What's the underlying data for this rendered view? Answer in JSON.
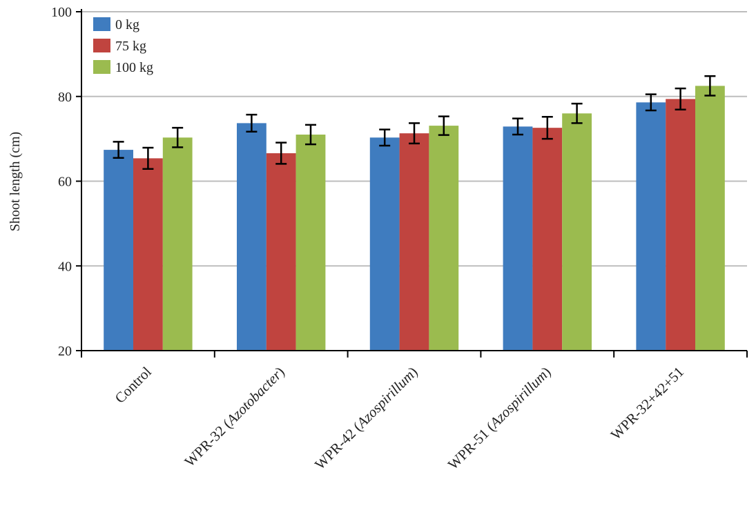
{
  "chart_data": {
    "type": "bar",
    "title": "",
    "xlabel": "",
    "ylabel": "Shoot length (cm)",
    "ylim": [
      20,
      100
    ],
    "yticks": [
      20,
      40,
      60,
      80,
      100
    ],
    "grid": true,
    "legend_position": "top-left",
    "categories": [
      "Control",
      "WPR-32 (Azotobacter)",
      "WPR-42 (Azospirillum)",
      "WPR-51 (Azospirillum)",
      "WPR-32+42+51"
    ],
    "series": [
      {
        "name": "0 kg",
        "color": "#3f7cbf",
        "values": [
          67.4,
          73.7,
          70.3,
          72.9,
          78.6
        ],
        "errors": [
          1.9,
          2.0,
          1.9,
          1.9,
          1.9
        ]
      },
      {
        "name": "75 kg",
        "color": "#c0443f",
        "values": [
          65.4,
          66.6,
          71.3,
          72.6,
          79.4
        ],
        "errors": [
          2.5,
          2.5,
          2.4,
          2.6,
          2.5
        ]
      },
      {
        "name": "100 kg",
        "color": "#9bbb4f",
        "values": [
          70.3,
          71.0,
          73.1,
          76.0,
          82.5
        ],
        "errors": [
          2.3,
          2.3,
          2.2,
          2.3,
          2.3
        ]
      }
    ]
  }
}
